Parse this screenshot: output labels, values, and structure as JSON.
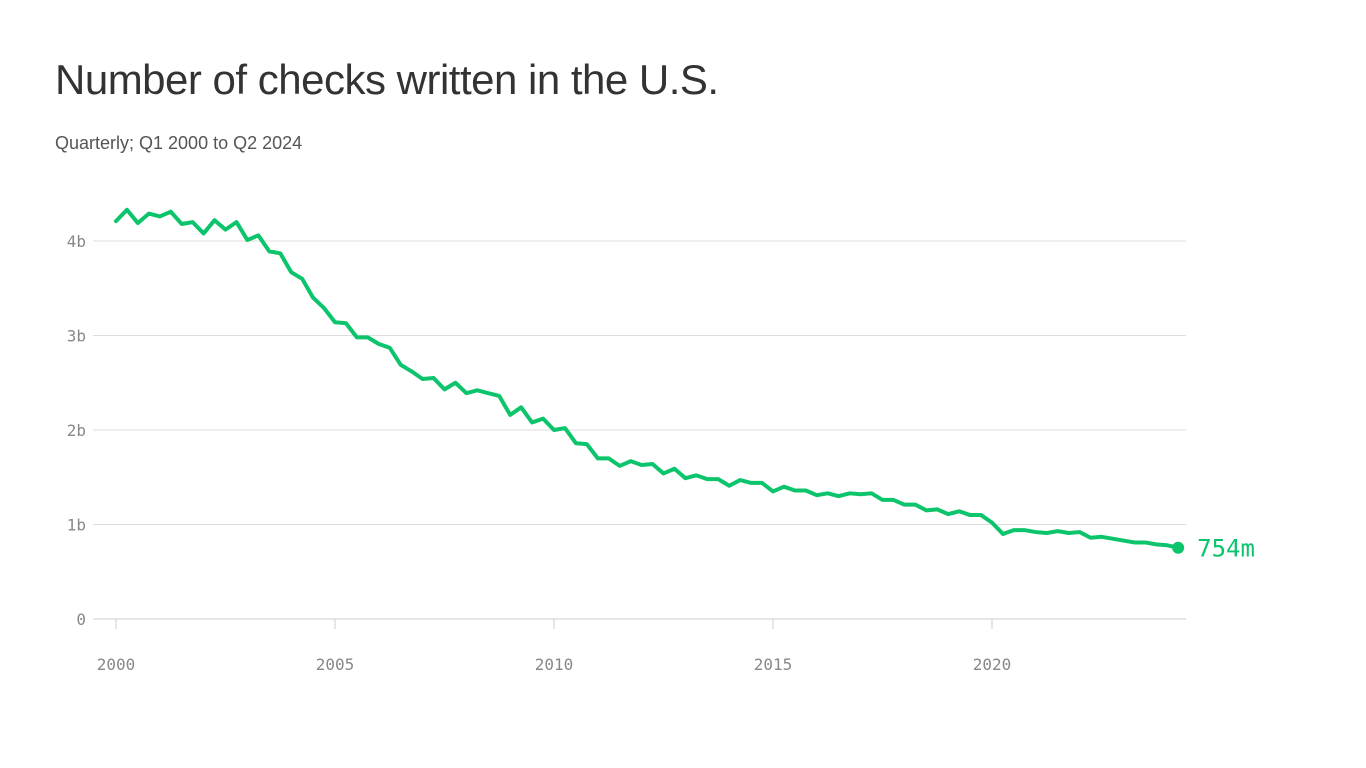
{
  "chart_data": {
    "type": "line",
    "title": "Number of checks written in the U.S.",
    "subtitle": "Quarterly; Q1 2000 to Q2 2024",
    "xlabel": "",
    "ylabel": "",
    "x_start": "Q1 2000",
    "x_end": "Q2 2024",
    "xlim": [
      2000,
      2024.25
    ],
    "ylim": [
      0,
      4.4
    ],
    "y_unit": "billions",
    "grid": true,
    "x_ticks": [
      {
        "value": 2000,
        "label": "2000"
      },
      {
        "value": 2005,
        "label": "2005"
      },
      {
        "value": 2010,
        "label": "2010"
      },
      {
        "value": 2015,
        "label": "2015"
      },
      {
        "value": 2020,
        "label": "2020"
      }
    ],
    "y_ticks": [
      {
        "value": 0,
        "label": "0"
      },
      {
        "value": 1,
        "label": "1b"
      },
      {
        "value": 2,
        "label": "2b"
      },
      {
        "value": 3,
        "label": "3b"
      },
      {
        "value": 4,
        "label": "4b"
      }
    ],
    "color": "#0cc46b",
    "end_label": "754m",
    "series": [
      {
        "name": "Checks written",
        "values": [
          4.21,
          4.33,
          4.19,
          4.29,
          4.26,
          4.31,
          4.18,
          4.2,
          4.08,
          4.22,
          4.12,
          4.2,
          4.01,
          4.06,
          3.89,
          3.87,
          3.67,
          3.6,
          3.4,
          3.29,
          3.14,
          3.13,
          2.98,
          2.98,
          2.91,
          2.87,
          2.69,
          2.62,
          2.54,
          2.55,
          2.43,
          2.5,
          2.39,
          2.42,
          2.39,
          2.36,
          2.16,
          2.24,
          2.08,
          2.12,
          2.0,
          2.02,
          1.86,
          1.85,
          1.7,
          1.7,
          1.62,
          1.67,
          1.63,
          1.64,
          1.54,
          1.59,
          1.49,
          1.52,
          1.48,
          1.48,
          1.41,
          1.47,
          1.44,
          1.44,
          1.35,
          1.4,
          1.36,
          1.36,
          1.31,
          1.33,
          1.3,
          1.33,
          1.32,
          1.33,
          1.26,
          1.26,
          1.21,
          1.21,
          1.15,
          1.16,
          1.11,
          1.14,
          1.1,
          1.1,
          1.02,
          0.9,
          0.94,
          0.94,
          0.92,
          0.91,
          0.93,
          0.91,
          0.92,
          0.86,
          0.87,
          0.85,
          0.83,
          0.81,
          0.81,
          0.79,
          0.78,
          0.754
        ]
      }
    ]
  }
}
